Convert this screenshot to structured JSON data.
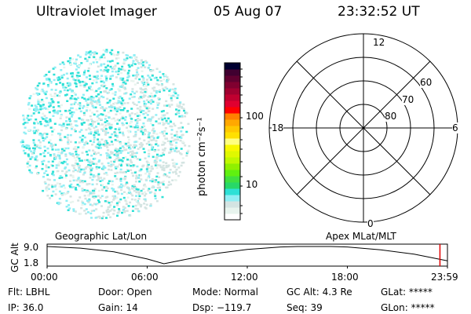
{
  "header": {
    "instrument": "Ultraviolet Imager",
    "date": "05 Aug 07",
    "time": "23:32:52 UT"
  },
  "colorbar": {
    "label": "photon cm⁻²s⁻¹",
    "ticks": [
      "100",
      "10"
    ],
    "colors_bottom_to_top": [
      "#ffffff",
      "#e8f4ee",
      "#d4e4e2",
      "#90eef4",
      "#2ee0d6",
      "#28d868",
      "#40e040",
      "#60f010",
      "#90f000",
      "#c0f800",
      "#e0f800",
      "#f8f800",
      "#ffff80",
      "#ffe000",
      "#ffc800",
      "#ffa800",
      "#ff8000",
      "#ff0000",
      "#e00030",
      "#c00030",
      "#a00030",
      "#800030",
      "#600030",
      "#400030",
      "#000030"
    ]
  },
  "polar_grid": {
    "mlt_labels": {
      "top": "12",
      "bottom": "0",
      "left": "18",
      "right": "6"
    },
    "lat_labels": [
      "80",
      "70",
      "60"
    ]
  },
  "labels": {
    "left": "Geographic Lat/Lon",
    "right": "Apex MLat/MLT"
  },
  "chart_data": {
    "type": "line",
    "ylabel": "GC Alt",
    "y_ticks": [
      "9.0",
      "1.8"
    ],
    "x_ticks": [
      "00:00",
      "06:00",
      "12:00",
      "18:00",
      "23:59"
    ],
    "ylim": [
      1.8,
      9.0
    ],
    "xlim_hours": [
      0,
      24
    ],
    "x": [
      0,
      2,
      4,
      6,
      7,
      8,
      10,
      12,
      14,
      15,
      16,
      17,
      18,
      20,
      22,
      24
    ],
    "values": [
      9.0,
      8.3,
      6.8,
      3.8,
      1.8,
      3.2,
      6.0,
      7.8,
      8.8,
      9.0,
      9.0,
      9.0,
      8.8,
      7.6,
      5.8,
      3.0
    ],
    "current_marker_hours": 23.55,
    "marker_color": "#e00000"
  },
  "status": {
    "row1": [
      "Flt: LBHL",
      "Door: Open",
      "Mode: Normal",
      "GC Alt: 4.3 Re",
      "GLat: *****"
    ],
    "row2": [
      "IP: 36.0",
      "Gain: 14",
      "Dsp: −119.7",
      "Seq: 39",
      "GLon: *****"
    ]
  }
}
